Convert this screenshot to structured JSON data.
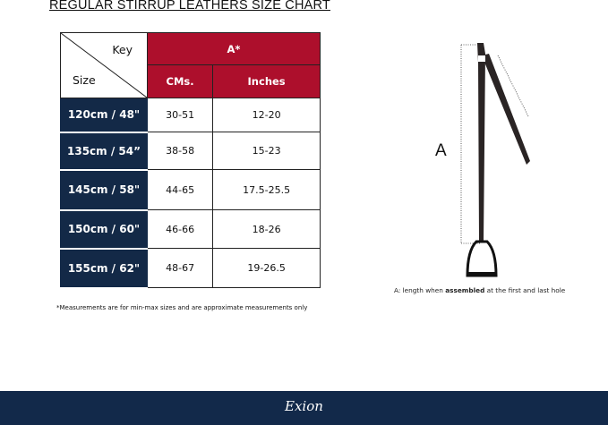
{
  "title": "REGULAR STIRRUP LEATHERS  SIZE CHART",
  "table": {
    "corner_key": "Key",
    "corner_size": "Size",
    "group_header": "A*",
    "columns": [
      "CMs.",
      "Inches"
    ],
    "rows": [
      {
        "size": "120cm / 48\"",
        "cms": "30-51",
        "inches": "12-20"
      },
      {
        "size": "135cm / 54”",
        "cms": "38-58",
        "inches": "15-23"
      },
      {
        "size": "145cm / 58\"",
        "cms": "44-65",
        "inches": "17.5-25.5"
      },
      {
        "size": "150cm / 60\"",
        "cms": "46-66",
        "inches": "18-26"
      },
      {
        "size": "155cm / 62\"",
        "cms": "48-67",
        "inches": "19-26.5"
      }
    ]
  },
  "footnote": "*Measurements are for min-max sizes and are approximate measurements only",
  "diagram": {
    "label": "A",
    "caption_pre": "A: length when ",
    "caption_bold": "assembled",
    "caption_post": " at the first and last hole"
  },
  "footer": {
    "logo": "Exion"
  },
  "colors": {
    "header_red": "#ad0f2c",
    "size_navy": "#132947",
    "footer": "#12294a"
  }
}
